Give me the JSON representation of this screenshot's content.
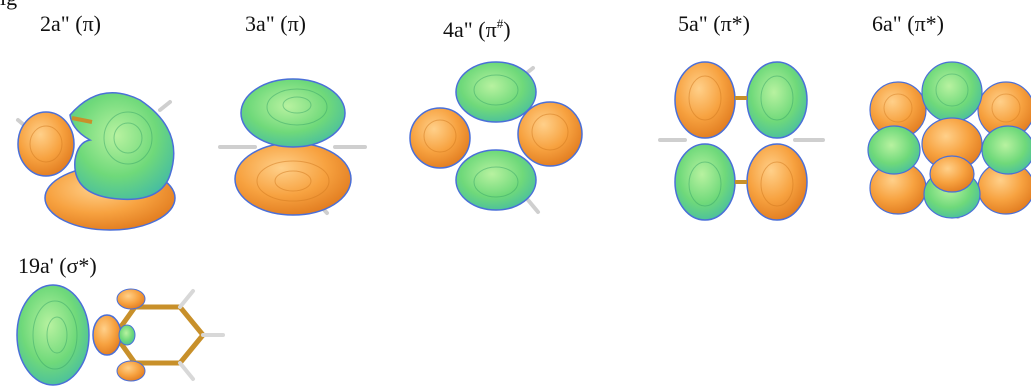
{
  "figure": {
    "header_fragment": "ig",
    "orbitals": [
      {
        "id": "2a2",
        "name": "2a\"",
        "symbol": "(π)",
        "sup": ""
      },
      {
        "id": "3a2",
        "name": "3a\"",
        "symbol": "(π)",
        "sup": ""
      },
      {
        "id": "4a2",
        "name": "4a\"",
        "symbol": "(π",
        "sup": "#",
        "close": ")"
      },
      {
        "id": "5a2",
        "name": "5a\"",
        "symbol": "(π*)",
        "sup": ""
      },
      {
        "id": "6a2",
        "name": "6a\"",
        "symbol": "(π*)",
        "sup": ""
      },
      {
        "id": "19a1",
        "name": "19a'",
        "symbol": "(σ*)",
        "sup": ""
      }
    ],
    "colors": {
      "positive": "#f29a3a",
      "negative": "#6fd97a",
      "rim": "#4a6fd8",
      "bond": "#c8902a",
      "hydrogen": "#d8d8d8"
    }
  }
}
